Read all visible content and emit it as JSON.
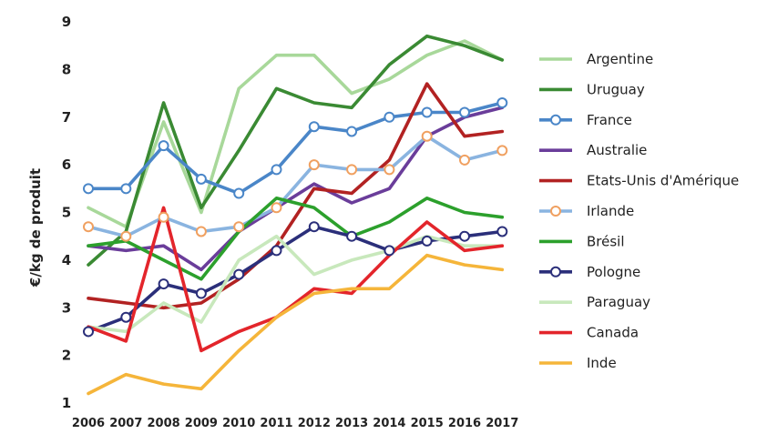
{
  "chart_data": {
    "type": "line",
    "title": "",
    "xlabel": "",
    "ylabel": "€/kg de produit",
    "ylim": [
      1,
      9
    ],
    "yticks": [
      1,
      2,
      3,
      4,
      5,
      6,
      7,
      8,
      9
    ],
    "grid": false,
    "legend_position": "right",
    "x": [
      "2006",
      "2007",
      "2008",
      "2009",
      "2010",
      "2011",
      "2012",
      "2013",
      "2014",
      "2015",
      "2016",
      "2017"
    ],
    "series": [
      {
        "name": "Argentine",
        "color": "#a8d89a",
        "marker": "none",
        "values": [
          5.1,
          4.7,
          6.9,
          5.0,
          7.6,
          8.3,
          8.3,
          7.5,
          7.8,
          8.3,
          8.6,
          8.2
        ]
      },
      {
        "name": "Uruguay",
        "color": "#3a8a33",
        "marker": "none",
        "values": [
          3.9,
          4.6,
          7.3,
          5.1,
          6.3,
          7.6,
          7.3,
          7.2,
          8.1,
          8.7,
          8.5,
          8.2
        ]
      },
      {
        "name": "France",
        "color": "#4a86c8",
        "marker": "circle",
        "values": [
          5.5,
          5.5,
          6.4,
          5.7,
          5.4,
          5.9,
          6.8,
          6.7,
          7.0,
          7.1,
          7.1,
          7.3
        ]
      },
      {
        "name": "Australie",
        "color": "#6a3d9a",
        "marker": "none",
        "values": [
          4.3,
          4.2,
          4.3,
          3.8,
          4.6,
          5.1,
          5.6,
          5.2,
          5.5,
          6.6,
          7.0,
          7.2
        ]
      },
      {
        "name": "Etats-Unis d'Amérique",
        "color": "#b22222",
        "marker": "none",
        "values": [
          3.2,
          3.1,
          3.0,
          3.1,
          3.6,
          4.3,
          5.5,
          5.4,
          6.1,
          7.7,
          6.6,
          6.7
        ]
      },
      {
        "name": "Irlande",
        "color": "#8ab4e0",
        "marker": "circle-orange",
        "values": [
          4.7,
          4.5,
          4.9,
          4.6,
          4.7,
          5.1,
          6.0,
          5.9,
          5.9,
          6.6,
          6.1,
          6.3
        ]
      },
      {
        "name": "Brésil",
        "color": "#2ca02c",
        "marker": "none",
        "values": [
          4.3,
          4.4,
          4.0,
          3.6,
          4.6,
          5.3,
          5.1,
          4.5,
          4.8,
          5.3,
          5.0,
          4.9
        ]
      },
      {
        "name": "Pologne",
        "color": "#2b2f7a",
        "marker": "circle",
        "values": [
          2.5,
          2.8,
          3.5,
          3.3,
          3.7,
          4.2,
          4.7,
          4.5,
          4.2,
          4.4,
          4.5,
          4.6
        ]
      },
      {
        "name": "Paraguay",
        "color": "#c8e8bc",
        "marker": "none",
        "values": [
          2.6,
          2.5,
          3.1,
          2.7,
          4.0,
          4.5,
          3.7,
          4.0,
          4.2,
          4.5,
          4.3,
          4.3
        ]
      },
      {
        "name": "Canada",
        "color": "#e3252b",
        "marker": "none",
        "values": [
          2.6,
          2.3,
          5.1,
          2.1,
          2.5,
          2.8,
          3.4,
          3.3,
          4.1,
          4.8,
          4.2,
          4.3
        ]
      },
      {
        "name": "Inde",
        "color": "#f5b53a",
        "marker": "none",
        "values": [
          1.2,
          1.6,
          1.4,
          1.3,
          2.1,
          2.8,
          3.3,
          3.4,
          3.4,
          4.1,
          3.9,
          3.8
        ]
      }
    ]
  }
}
